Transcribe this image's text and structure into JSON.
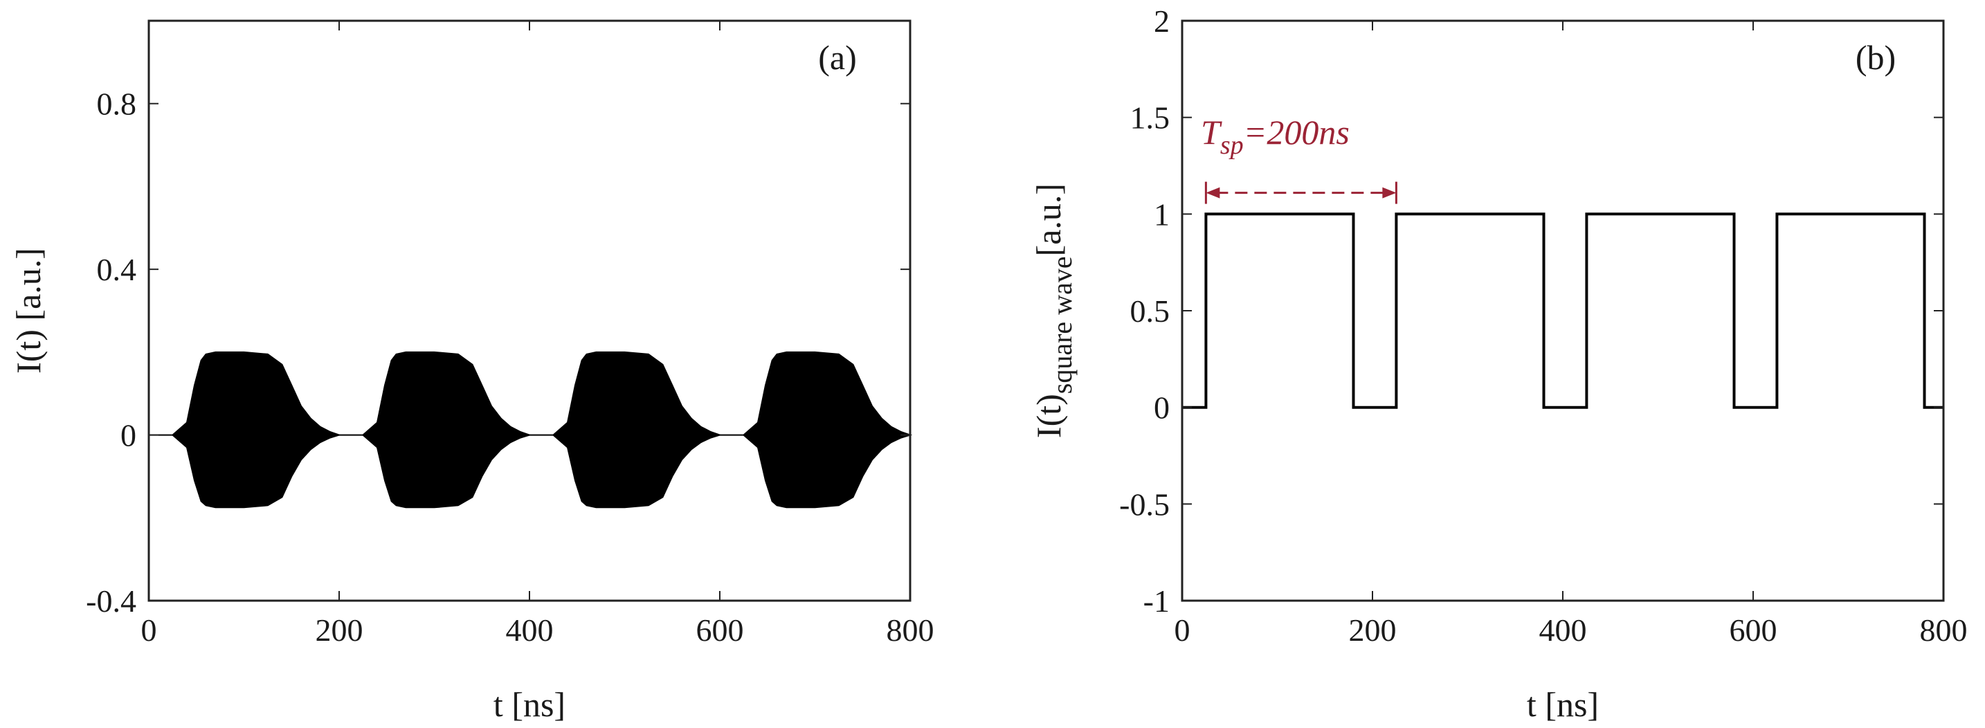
{
  "chart_data": [
    {
      "type": "line",
      "panel_label": "(a)",
      "title": "",
      "xlabel": "t [ns]",
      "ylabel": "I(t) [a.u.]",
      "xlim": [
        0,
        800
      ],
      "ylim": [
        -0.4,
        1.0
      ],
      "xticks": [
        0,
        200,
        400,
        600,
        800
      ],
      "xtick_labels": [
        "0",
        "200",
        "400",
        "600",
        "800"
      ],
      "yticks": [
        -0.4,
        0,
        0.4,
        0.8
      ],
      "ytick_labels": [
        "-0.4",
        "0",
        "0.4",
        "0.8"
      ],
      "grid": false,
      "line_color": "#000000",
      "series": [
        {
          "description": "oscillating signal envelope (filled between upper and lower envelope)",
          "bursts": [
            {
              "x": [
                25,
                40,
                48,
                55,
                60,
                70,
                100,
                125,
                140,
                150,
                160,
                170,
                180,
                190,
                200
              ],
              "upper": [
                0.0,
                0.03,
                0.12,
                0.18,
                0.195,
                0.2,
                0.2,
                0.195,
                0.17,
                0.12,
                0.07,
                0.04,
                0.02,
                0.008,
                0.0
              ],
              "lower": [
                0.0,
                -0.03,
                -0.11,
                -0.16,
                -0.17,
                -0.175,
                -0.175,
                -0.17,
                -0.15,
                -0.1,
                -0.06,
                -0.035,
                -0.018,
                -0.007,
                0.0
              ]
            },
            {
              "x": [
                225,
                240,
                248,
                255,
                260,
                270,
                300,
                325,
                340,
                350,
                360,
                370,
                380,
                390,
                400
              ],
              "upper": [
                0.0,
                0.03,
                0.12,
                0.18,
                0.195,
                0.2,
                0.2,
                0.195,
                0.17,
                0.12,
                0.07,
                0.04,
                0.02,
                0.008,
                0.0
              ],
              "lower": [
                0.0,
                -0.03,
                -0.11,
                -0.16,
                -0.17,
                -0.175,
                -0.175,
                -0.17,
                -0.15,
                -0.1,
                -0.06,
                -0.035,
                -0.018,
                -0.007,
                0.0
              ]
            },
            {
              "x": [
                425,
                440,
                448,
                455,
                460,
                470,
                500,
                525,
                540,
                550,
                560,
                570,
                580,
                590,
                600
              ],
              "upper": [
                0.0,
                0.03,
                0.12,
                0.18,
                0.195,
                0.2,
                0.2,
                0.195,
                0.17,
                0.12,
                0.07,
                0.04,
                0.02,
                0.008,
                0.0
              ],
              "lower": [
                0.0,
                -0.03,
                -0.11,
                -0.16,
                -0.17,
                -0.175,
                -0.175,
                -0.17,
                -0.15,
                -0.1,
                -0.06,
                -0.035,
                -0.018,
                -0.007,
                0.0
              ]
            },
            {
              "x": [
                625,
                640,
                648,
                655,
                660,
                670,
                700,
                725,
                740,
                750,
                760,
                770,
                780,
                790,
                800
              ],
              "upper": [
                0.0,
                0.03,
                0.12,
                0.18,
                0.195,
                0.2,
                0.2,
                0.195,
                0.17,
                0.12,
                0.07,
                0.04,
                0.02,
                0.008,
                0.0
              ],
              "lower": [
                0.0,
                -0.03,
                -0.11,
                -0.16,
                -0.17,
                -0.175,
                -0.175,
                -0.17,
                -0.15,
                -0.1,
                -0.06,
                -0.035,
                -0.018,
                -0.007,
                0.0
              ]
            }
          ]
        }
      ]
    },
    {
      "type": "line",
      "panel_label": "(b)",
      "title": "",
      "xlabel": "t [ns]",
      "ylabel": "I(t)",
      "ylabel_subscript": "square wave",
      "ylabel_suffix": "[a.u.]",
      "xlim": [
        0,
        800
      ],
      "ylim": [
        -1,
        2
      ],
      "xticks": [
        0,
        200,
        400,
        600,
        800
      ],
      "xtick_labels": [
        "0",
        "200",
        "400",
        "600",
        "800"
      ],
      "yticks": [
        -1,
        -0.5,
        0,
        0.5,
        1,
        1.5,
        2
      ],
      "ytick_labels": [
        "-1",
        "-0.5",
        "0",
        "0.5",
        "1",
        "1.5",
        "2"
      ],
      "grid": false,
      "line_color": "#000000",
      "series": [
        {
          "x": [
            0,
            25,
            25,
            180,
            180,
            225,
            225,
            380,
            380,
            425,
            425,
            580,
            580,
            625,
            625,
            780,
            780,
            800
          ],
          "y": [
            0,
            0,
            1,
            1,
            0,
            0,
            1,
            1,
            0,
            0,
            1,
            1,
            0,
            0,
            1,
            1,
            0,
            0
          ]
        }
      ],
      "annotation": {
        "text_main": "T",
        "text_sub": "sp",
        "text_rest": "=200ns",
        "color": "#9b2335",
        "arrow_from_x": 25,
        "arrow_to_x": 225,
        "arrow_y": 1.11
      }
    }
  ]
}
